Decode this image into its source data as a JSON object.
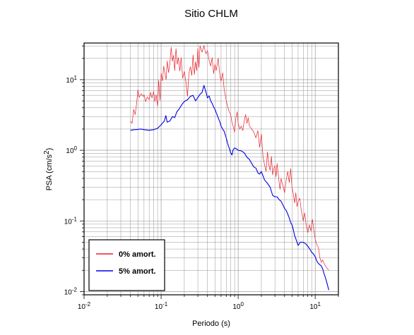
{
  "chart_data": {
    "type": "line",
    "title": "Sitio CHLM",
    "xlabel": "Periodo (s)",
    "ylabel_main": "PSA (cm/s",
    "ylabel_sup": "2",
    "ylabel_end": ")",
    "x_scale": "log",
    "y_scale": "log",
    "xlim": [
      0.01,
      20
    ],
    "ylim": [
      0.009,
      33
    ],
    "grid": true,
    "legend_position": "bottom-left",
    "x_ticks": [
      {
        "value": 0.01,
        "base": "10",
        "exp": "-2"
      },
      {
        "value": 0.1,
        "base": "10",
        "exp": "-1"
      },
      {
        "value": 1,
        "base": "10",
        "exp": "0"
      },
      {
        "value": 10,
        "base": "10",
        "exp": "1"
      }
    ],
    "y_ticks": [
      {
        "value": 0.01,
        "base": "10",
        "exp": "-2"
      },
      {
        "value": 0.1,
        "base": "10",
        "exp": "-1"
      },
      {
        "value": 1,
        "base": "10",
        "exp": "0"
      },
      {
        "value": 10,
        "base": "10",
        "exp": "1"
      }
    ],
    "series": [
      {
        "name": "0% amort.",
        "color": "#e8202a",
        "width": 0.7,
        "points": [
          [
            0.04,
            2.6
          ],
          [
            0.042,
            2.4
          ],
          [
            0.044,
            3.8
          ],
          [
            0.046,
            3.2
          ],
          [
            0.048,
            4.5
          ],
          [
            0.05,
            7.2
          ],
          [
            0.052,
            5.6
          ],
          [
            0.055,
            6.3
          ],
          [
            0.058,
            5.8
          ],
          [
            0.06,
            6.1
          ],
          [
            0.063,
            4.9
          ],
          [
            0.066,
            5.7
          ],
          [
            0.07,
            5.2
          ],
          [
            0.073,
            6.6
          ],
          [
            0.076,
            5.5
          ],
          [
            0.08,
            6.8
          ],
          [
            0.083,
            4.9
          ],
          [
            0.086,
            6.1
          ],
          [
            0.09,
            4.2
          ],
          [
            0.093,
            9.8
          ],
          [
            0.097,
            5.1
          ],
          [
            0.1,
            12.3
          ],
          [
            0.104,
            9.6
          ],
          [
            0.108,
            15.5
          ],
          [
            0.112,
            12.2
          ],
          [
            0.116,
            10.1
          ],
          [
            0.12,
            18.4
          ],
          [
            0.125,
            12.6
          ],
          [
            0.13,
            17.2
          ],
          [
            0.135,
            28.8
          ],
          [
            0.14,
            18.2
          ],
          [
            0.145,
            22.1
          ],
          [
            0.15,
            13.4
          ],
          [
            0.156,
            27.5
          ],
          [
            0.162,
            16.5
          ],
          [
            0.168,
            20.4
          ],
          [
            0.175,
            13.2
          ],
          [
            0.182,
            20.6
          ],
          [
            0.19,
            10.5
          ],
          [
            0.2,
            13.1
          ],
          [
            0.21,
            9.2
          ],
          [
            0.22,
            5.8
          ],
          [
            0.23,
            12.6
          ],
          [
            0.24,
            15.2
          ],
          [
            0.25,
            11.5
          ],
          [
            0.26,
            22.4
          ],
          [
            0.27,
            11.8
          ],
          [
            0.28,
            17.9
          ],
          [
            0.29,
            13.4
          ],
          [
            0.3,
            27.8
          ],
          [
            0.31,
            14.9
          ],
          [
            0.32,
            30.2
          ],
          [
            0.34,
            24.5
          ],
          [
            0.36,
            30.4
          ],
          [
            0.38,
            23.2
          ],
          [
            0.4,
            25.8
          ],
          [
            0.42,
            18.8
          ],
          [
            0.44,
            15.6
          ],
          [
            0.46,
            20.5
          ],
          [
            0.48,
            12.2
          ],
          [
            0.5,
            16.4
          ],
          [
            0.52,
            13.5
          ],
          [
            0.55,
            20.1
          ],
          [
            0.58,
            11.4
          ],
          [
            0.6,
            9.5
          ],
          [
            0.63,
            12.5
          ],
          [
            0.66,
            7.1
          ],
          [
            0.7,
            5.1
          ],
          [
            0.73,
            4.2
          ],
          [
            0.76,
            3.6
          ],
          [
            0.8,
            3.2
          ],
          [
            0.83,
            2.5
          ],
          [
            0.86,
            2.2
          ],
          [
            0.9,
            1.8
          ],
          [
            0.93,
            2.8
          ],
          [
            0.97,
            3.5
          ],
          [
            1.0,
            2.4
          ],
          [
            1.05,
            2.0
          ],
          [
            1.1,
            2.2
          ],
          [
            1.15,
            1.9
          ],
          [
            1.2,
            2.6
          ],
          [
            1.25,
            3.2
          ],
          [
            1.3,
            2.4
          ],
          [
            1.35,
            2.9
          ],
          [
            1.4,
            2.2
          ],
          [
            1.5,
            2.0
          ],
          [
            1.6,
            1.8
          ],
          [
            1.7,
            1.5
          ],
          [
            1.8,
            1.9
          ],
          [
            1.9,
            1.1
          ],
          [
            2.0,
            1.7
          ],
          [
            2.1,
            0.8
          ],
          [
            2.2,
            0.62
          ],
          [
            2.3,
            0.5
          ],
          [
            2.4,
            0.95
          ],
          [
            2.5,
            0.62
          ],
          [
            2.6,
            0.52
          ],
          [
            2.7,
            0.82
          ],
          [
            2.8,
            0.45
          ],
          [
            2.9,
            0.55
          ],
          [
            3.0,
            0.6
          ],
          [
            3.1,
            0.42
          ],
          [
            3.2,
            0.65
          ],
          [
            3.3,
            0.48
          ],
          [
            3.4,
            0.35
          ],
          [
            3.5,
            0.28
          ],
          [
            3.6,
            0.4
          ],
          [
            3.8,
            0.32
          ],
          [
            4.0,
            0.25
          ],
          [
            4.2,
            0.38
          ],
          [
            4.4,
            0.5
          ],
          [
            4.6,
            0.35
          ],
          [
            4.8,
            0.55
          ],
          [
            5.0,
            0.3
          ],
          [
            5.2,
            0.24
          ],
          [
            5.4,
            0.18
          ],
          [
            5.6,
            0.25
          ],
          [
            5.8,
            0.16
          ],
          [
            6.0,
            0.19
          ],
          [
            6.3,
            0.21
          ],
          [
            6.6,
            0.14
          ],
          [
            7.0,
            0.1
          ],
          [
            7.3,
            0.13
          ],
          [
            7.6,
            0.09
          ],
          [
            8.0,
            0.068
          ],
          [
            8.4,
            0.088
          ],
          [
            8.8,
            0.072
          ],
          [
            9.2,
            0.105
          ],
          [
            9.6,
            0.075
          ],
          [
            10.0,
            0.055
          ],
          [
            10.5,
            0.046
          ],
          [
            11.0,
            0.042
          ],
          [
            11.5,
            0.03
          ],
          [
            12.0,
            0.026
          ],
          [
            12.5,
            0.028
          ],
          [
            13.0,
            0.025
          ],
          [
            14.0,
            0.022
          ],
          [
            15.0,
            0.02
          ]
        ]
      },
      {
        "name": "5% amort.",
        "color": "#0000e6",
        "width": 1.1,
        "points": [
          [
            0.04,
            1.92
          ],
          [
            0.045,
            1.96
          ],
          [
            0.05,
            1.98
          ],
          [
            0.055,
            2.0
          ],
          [
            0.06,
            1.96
          ],
          [
            0.07,
            1.92
          ],
          [
            0.08,
            1.96
          ],
          [
            0.09,
            2.05
          ],
          [
            0.1,
            2.3
          ],
          [
            0.11,
            2.6
          ],
          [
            0.115,
            3.1
          ],
          [
            0.12,
            2.5
          ],
          [
            0.13,
            2.6
          ],
          [
            0.14,
            3.0
          ],
          [
            0.15,
            2.9
          ],
          [
            0.16,
            3.5
          ],
          [
            0.17,
            3.8
          ],
          [
            0.18,
            4.2
          ],
          [
            0.19,
            4.6
          ],
          [
            0.2,
            4.9
          ],
          [
            0.22,
            5.2
          ],
          [
            0.24,
            5.8
          ],
          [
            0.26,
            6.0
          ],
          [
            0.28,
            5.0
          ],
          [
            0.3,
            5.6
          ],
          [
            0.32,
            6.2
          ],
          [
            0.34,
            6.6
          ],
          [
            0.36,
            8.3
          ],
          [
            0.38,
            6.8
          ],
          [
            0.4,
            5.5
          ],
          [
            0.42,
            5.9
          ],
          [
            0.44,
            5.0
          ],
          [
            0.46,
            4.6
          ],
          [
            0.48,
            4.1
          ],
          [
            0.5,
            3.8
          ],
          [
            0.52,
            3.4
          ],
          [
            0.55,
            2.9
          ],
          [
            0.58,
            2.5
          ],
          [
            0.6,
            2.2
          ],
          [
            0.63,
            2.0
          ],
          [
            0.66,
            1.85
          ],
          [
            0.7,
            1.5
          ],
          [
            0.73,
            1.25
          ],
          [
            0.76,
            1.1
          ],
          [
            0.8,
            0.92
          ],
          [
            0.83,
            0.86
          ],
          [
            0.86,
            1.02
          ],
          [
            0.9,
            1.08
          ],
          [
            0.95,
            1.05
          ],
          [
            1.0,
            1.0
          ],
          [
            1.1,
            0.98
          ],
          [
            1.2,
            0.92
          ],
          [
            1.3,
            0.8
          ],
          [
            1.4,
            0.74
          ],
          [
            1.5,
            0.65
          ],
          [
            1.6,
            0.58
          ],
          [
            1.7,
            0.56
          ],
          [
            1.8,
            0.48
          ],
          [
            1.9,
            0.46
          ],
          [
            2.0,
            0.5
          ],
          [
            2.2,
            0.38
          ],
          [
            2.4,
            0.34
          ],
          [
            2.6,
            0.3
          ],
          [
            2.8,
            0.23
          ],
          [
            3.0,
            0.22
          ],
          [
            3.2,
            0.22
          ],
          [
            3.4,
            0.2
          ],
          [
            3.6,
            0.19
          ],
          [
            3.8,
            0.17
          ],
          [
            4.0,
            0.15
          ],
          [
            4.2,
            0.14
          ],
          [
            4.4,
            0.125
          ],
          [
            4.6,
            0.11
          ],
          [
            4.8,
            0.095
          ],
          [
            5.0,
            0.088
          ],
          [
            5.2,
            0.075
          ],
          [
            5.4,
            0.062
          ],
          [
            5.6,
            0.056
          ],
          [
            5.8,
            0.05
          ],
          [
            6.0,
            0.045
          ],
          [
            6.4,
            0.05
          ],
          [
            6.8,
            0.05
          ],
          [
            7.2,
            0.049
          ],
          [
            7.6,
            0.047
          ],
          [
            8.0,
            0.044
          ],
          [
            8.5,
            0.04
          ],
          [
            9.0,
            0.036
          ],
          [
            9.5,
            0.034
          ],
          [
            10.0,
            0.031
          ],
          [
            10.5,
            0.027
          ],
          [
            11.0,
            0.025
          ],
          [
            12.0,
            0.023
          ],
          [
            12.5,
            0.021
          ],
          [
            13.0,
            0.018
          ],
          [
            13.5,
            0.016
          ],
          [
            14.0,
            0.014
          ],
          [
            15.0,
            0.0105
          ]
        ]
      }
    ]
  }
}
